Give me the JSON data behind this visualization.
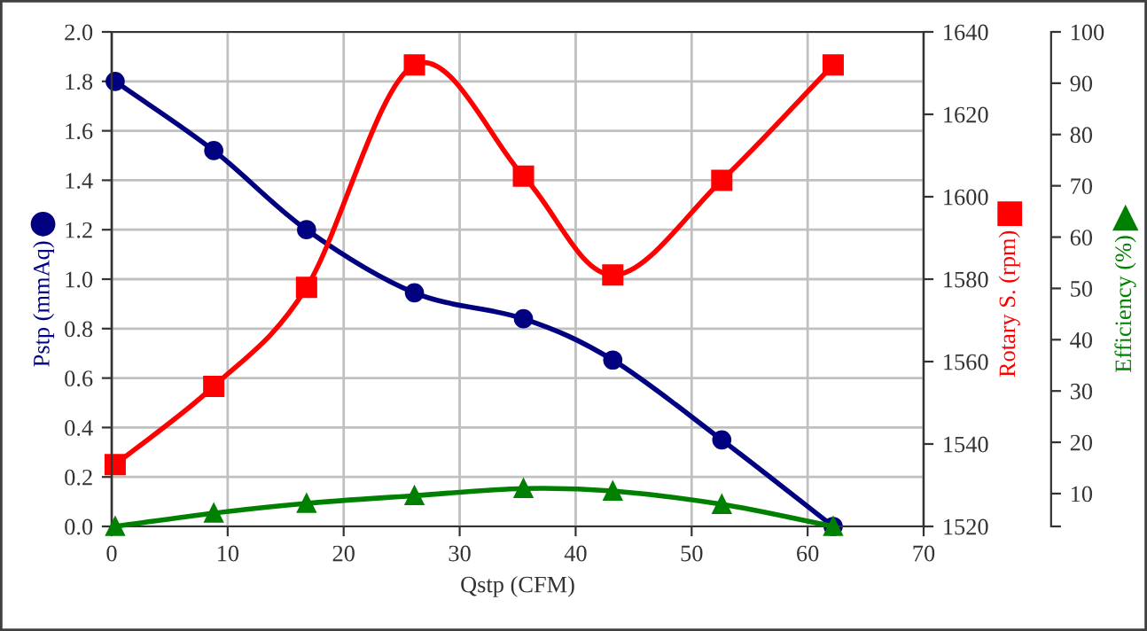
{
  "chart_data": {
    "type": "line",
    "xlabel": "Qstp (CFM)",
    "ylabel": "Pstp (mmAq)",
    "y2label": "Rotary S. (rpm)",
    "y3label": "Efficiency (%)",
    "x": [
      0.3,
      8.8,
      16.8,
      26.1,
      35.5,
      43.2,
      52.6,
      62.2
    ],
    "series": [
      {
        "color": "#000080",
        "marker": "circle",
        "axis": "y",
        "values": [
          1.8,
          1.52,
          1.2,
          0.945,
          0.84,
          0.673,
          0.35,
          0.0
        ]
      },
      {
        "color": "#ff0000",
        "marker": "square",
        "axis": "y2",
        "values": [
          1535,
          1554,
          1578,
          1632,
          1605,
          1581,
          1604,
          1632
        ]
      },
      {
        "color": "#008000",
        "marker": "triangle",
        "axis": "y3",
        "values": [
          3.6,
          6.2,
          8.1,
          9.6,
          11.0,
          10.5,
          7.9,
          3.6
        ]
      }
    ],
    "xlim": [
      0,
      70
    ],
    "xticks": [
      0,
      10,
      20,
      30,
      40,
      50,
      60,
      70
    ],
    "ylim": [
      0,
      2.0
    ],
    "yticks": [
      {
        "value": 0,
        "label": "0.0"
      },
      {
        "value": 0.2,
        "label": "0.2"
      },
      {
        "value": 0.4,
        "label": "0.4"
      },
      {
        "value": 0.6,
        "label": "0.6"
      },
      {
        "value": 0.8,
        "label": "0.8"
      },
      {
        "value": 1.0,
        "label": "1.0"
      },
      {
        "value": 1.2,
        "label": "1.2"
      },
      {
        "value": 1.4,
        "label": "1.4"
      },
      {
        "value": 1.6,
        "label": "1.6"
      },
      {
        "value": 1.8,
        "label": "1.8"
      },
      {
        "value": 2.0,
        "label": "2.0"
      }
    ],
    "y2lim": [
      1520,
      1640
    ],
    "y2ticks": [
      1520,
      1540,
      1560,
      1580,
      1600,
      1620,
      1640
    ],
    "y3lim": [
      3.6,
      100
    ],
    "y3ticks": [
      {
        "value": 3.6,
        "label": null
      },
      10,
      20,
      30,
      40,
      50,
      60,
      70,
      80,
      90,
      100
    ],
    "grid": true,
    "line_style": "solid"
  }
}
